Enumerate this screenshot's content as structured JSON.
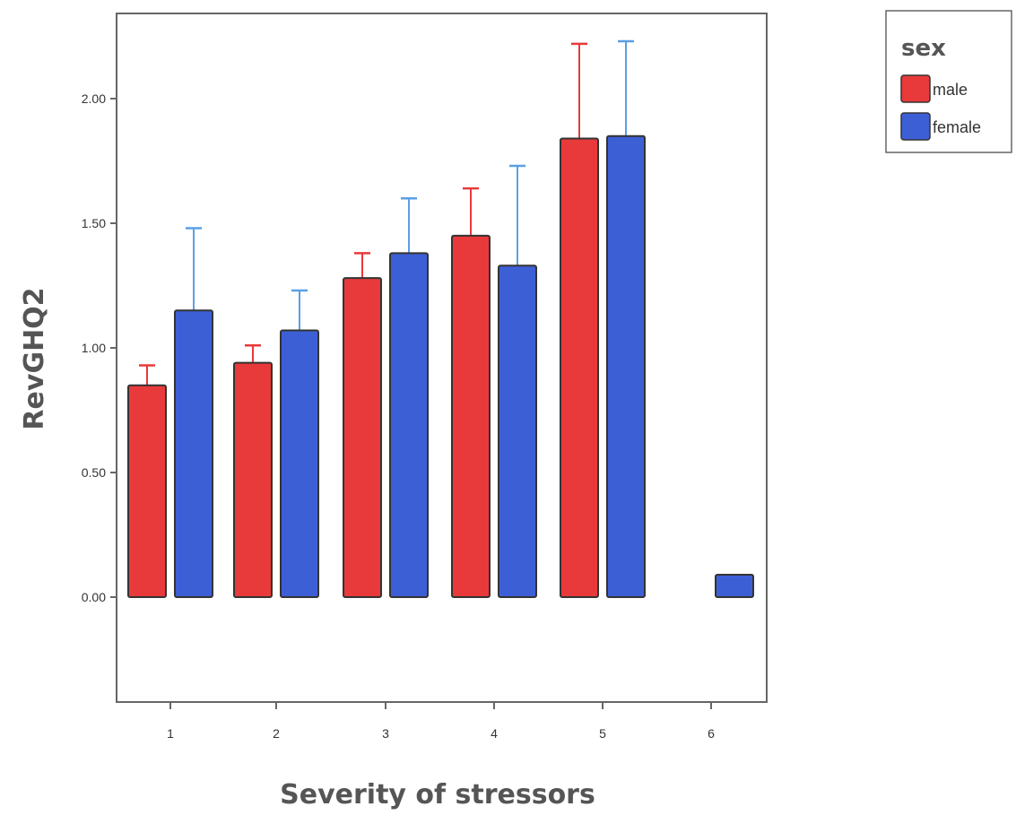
{
  "chart_data": {
    "type": "bar",
    "title": "",
    "xlabel": "Severity of stressors",
    "ylabel": "RevGHQ2",
    "categories": [
      "1",
      "2",
      "3",
      "4",
      "5",
      "6"
    ],
    "y_ticks": [
      "0.00",
      "0.50",
      "1.00",
      "1.50",
      "2.00"
    ],
    "ylim": [
      -0.42,
      2.35
    ],
    "grid": false,
    "legend_position": "top-right, outside plot",
    "legend_title": "sex",
    "series": [
      {
        "name": "male",
        "color": "#e83a3a",
        "error_color": "#e83a3a",
        "values": [
          0.85,
          0.94,
          1.28,
          1.45,
          1.84,
          null
        ],
        "error_upper": [
          0.93,
          1.01,
          1.38,
          1.64,
          2.22,
          null
        ]
      },
      {
        "name": "female",
        "color": "#3d5fd6",
        "error_color": "#5aa0e6",
        "values": [
          1.15,
          1.07,
          1.38,
          1.33,
          1.85,
          0.09
        ],
        "error_upper": [
          1.48,
          1.23,
          1.6,
          1.73,
          2.23,
          null
        ]
      }
    ]
  }
}
